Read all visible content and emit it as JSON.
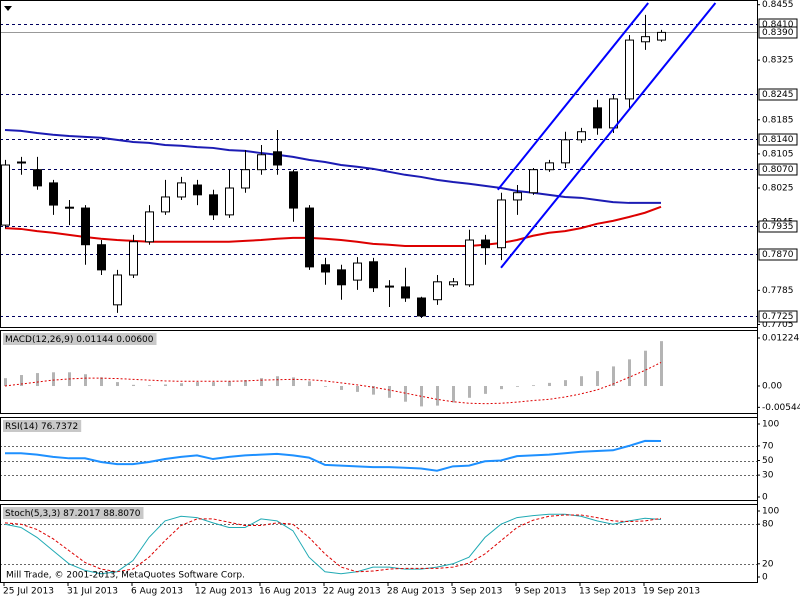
{
  "chart_data": [
    {
      "type": "candlestick",
      "categories": [
        "25 Jul 2013",
        null,
        null,
        null,
        "31 Jul 2013",
        null,
        null,
        null,
        "6 Aug 2013",
        null,
        null,
        null,
        "12 Aug 2013",
        null,
        null,
        null,
        "16 Aug 2013",
        null,
        null,
        null,
        "22 Aug 2013",
        null,
        null,
        null,
        "28 Aug 2013",
        null,
        null,
        null,
        "3 Sep 2013",
        null,
        null,
        null,
        "9 Sep 2013",
        null,
        null,
        null,
        "13 Sep 2013",
        null,
        null,
        null,
        "19 Sep 2013",
        null
      ],
      "open": [
        0.7938,
        0.8084,
        0.8068,
        0.8037,
        0.7978,
        0.7978,
        0.7892,
        0.7751,
        0.7821,
        0.7899,
        0.7969,
        0.8004,
        0.8032,
        0.8009,
        0.7962,
        0.8025,
        0.8068,
        0.811,
        0.8063,
        0.7978,
        0.7845,
        0.7833,
        0.7809,
        0.7852,
        0.7795,
        0.7793,
        0.7767,
        0.7763,
        0.7798,
        0.7798,
        0.7903,
        0.7885,
        0.7997,
        0.8014,
        0.8068,
        0.8084,
        0.8138,
        0.8213,
        0.8166,
        0.8234,
        0.8368,
        0.8372
      ],
      "high": [
        0.8091,
        0.8098,
        0.8098,
        0.8044,
        0.7997,
        0.7985,
        0.7903,
        0.7833,
        0.7915,
        0.7985,
        0.8044,
        0.8051,
        0.8044,
        0.8021,
        0.8068,
        0.8114,
        0.8126,
        0.8161,
        0.8068,
        0.7985,
        0.7861,
        0.7845,
        0.7863,
        0.7861,
        0.7809,
        0.7838,
        0.777,
        0.7821,
        0.7814,
        0.7927,
        0.7915,
        0.8014,
        0.8032,
        0.8072,
        0.8091,
        0.8157,
        0.8166,
        0.8232,
        0.8243,
        0.8384,
        0.8431,
        0.8396
      ],
      "low": [
        0.7931,
        0.8056,
        0.8021,
        0.7962,
        0.7938,
        0.7845,
        0.7821,
        0.7732,
        0.7814,
        0.7892,
        0.7962,
        0.7997,
        0.7985,
        0.795,
        0.7955,
        0.8014,
        0.8056,
        0.8056,
        0.7946,
        0.7833,
        0.7798,
        0.7763,
        0.7786,
        0.7781,
        0.7746,
        0.7758,
        0.772,
        0.7751,
        0.7793,
        0.7793,
        0.7845,
        0.7856,
        0.7962,
        0.8009,
        0.8063,
        0.8072,
        0.8131,
        0.815,
        0.8154,
        0.8208,
        0.8349,
        0.8368
      ],
      "close": [
        0.8079,
        0.8086,
        0.803,
        0.7985,
        0.798,
        0.7892,
        0.7833,
        0.7821,
        0.7899,
        0.7969,
        0.8004,
        0.8037,
        0.8009,
        0.7962,
        0.8025,
        0.8068,
        0.8103,
        0.8079,
        0.7978,
        0.784,
        0.7828,
        0.7798,
        0.7849,
        0.7791,
        0.7793,
        0.7767,
        0.7725,
        0.7805,
        0.7805,
        0.7903,
        0.7885,
        0.7997,
        0.8014,
        0.8068,
        0.8084,
        0.8138,
        0.8157,
        0.8166,
        0.8234,
        0.8372,
        0.838,
        0.839
      ],
      "up_color": "#ffffff",
      "down_color": "#000000",
      "lines": [
        {
          "color": "#1c1cb4",
          "values": [
            0.8161,
            0.8159,
            0.8154,
            0.815,
            0.8147,
            0.8145,
            0.8143,
            0.8138,
            0.8133,
            0.8131,
            0.8126,
            0.8124,
            0.8121,
            0.8119,
            0.8114,
            0.8112,
            0.8107,
            0.8103,
            0.8098,
            0.8091,
            0.8086,
            0.8079,
            0.8075,
            0.807,
            0.8063,
            0.8056,
            0.8051,
            0.8044,
            0.8039,
            0.8035,
            0.803,
            0.8025,
            0.8018,
            0.8014,
            0.8009,
            0.8004,
            0.8002,
            0.7997,
            0.7992,
            0.799,
            0.799,
            0.799
          ]
        },
        {
          "color": "#dd0000",
          "values": [
            0.7931,
            0.7929,
            0.7924,
            0.792,
            0.7915,
            0.791,
            0.7906,
            0.7903,
            0.7901,
            0.7899,
            0.7899,
            0.7899,
            0.7899,
            0.7899,
            0.7899,
            0.7901,
            0.7903,
            0.7906,
            0.7908,
            0.7908,
            0.7906,
            0.7903,
            0.7899,
            0.7894,
            0.7892,
            0.7889,
            0.7889,
            0.7889,
            0.7889,
            0.7889,
            0.7892,
            0.7896,
            0.7903,
            0.7913,
            0.792,
            0.7924,
            0.7931,
            0.7941,
            0.7948,
            0.7957,
            0.7967,
            0.7981
          ]
        }
      ],
      "trendlines": [
        {
          "color": "#0000ff",
          "x": [
            30.8,
            40.2
          ],
          "y": [
            0.8021,
            0.8459
          ]
        },
        {
          "color": "#0000ff",
          "x": [
            31,
            44.4
          ],
          "y": [
            0.7838,
            0.8459
          ]
        }
      ],
      "ylim": [
        0.7699,
        0.8466
      ],
      "yticks": [
        0.8455,
        0.8325,
        0.8185,
        0.8105,
        0.8025,
        0.7945,
        0.7785,
        0.7705
      ],
      "levels": [
        {
          "value": 0.841,
          "label": "0.8410"
        },
        {
          "value": 0.8245,
          "label": "0.8245"
        },
        {
          "value": 0.814,
          "label": "0.8140"
        },
        {
          "value": 0.807,
          "label": "0.8070"
        },
        {
          "value": 0.7935,
          "label": "0.7935"
        },
        {
          "value": 0.787,
          "label": "0.7870"
        },
        {
          "value": 0.7725,
          "label": "0.7725"
        }
      ],
      "current_price": {
        "value": 0.839,
        "label": "0.8390"
      }
    },
    {
      "type": "macd",
      "title": "MACD(12,26,9) 0.01144 0.00600",
      "values": [
        0.002,
        0.0028,
        0.0033,
        0.0035,
        0.0035,
        0.003,
        0.0022,
        0.001,
        0.0003,
        0.0002,
        0.0004,
        0.0007,
        0.001,
        0.001,
        0.0012,
        0.0015,
        0.002,
        0.0025,
        0.0022,
        0.0012,
        -0.0002,
        -0.001,
        -0.0015,
        -0.0022,
        -0.003,
        -0.004,
        -0.0052,
        -0.005,
        -0.0042,
        -0.003,
        -0.002,
        -0.0008,
        -0.0002,
        0.0002,
        0.0008,
        0.0015,
        0.0025,
        0.0038,
        0.005,
        0.0068,
        0.009,
        0.01144
      ],
      "color": "#b4b4b4",
      "signal": {
        "color": "#dd0000",
        "values": [
          0,
          0.0005,
          0.001,
          0.0015,
          0.0018,
          0.002,
          0.002,
          0.0019,
          0.0017,
          0.0015,
          0.0013,
          0.0012,
          0.0012,
          0.0012,
          0.0012,
          0.0013,
          0.0015,
          0.0016,
          0.0017,
          0.0016,
          0.0013,
          0.0008,
          0.0003,
          -0.0003,
          -0.001,
          -0.0018,
          -0.0026,
          -0.0034,
          -0.004,
          -0.0044,
          -0.0045,
          -0.0044,
          -0.0041,
          -0.0037,
          -0.0034,
          -0.0028,
          -0.002,
          -0.001,
          0.0005,
          0.0022,
          0.004,
          0.006
        ]
      },
      "ylim": [
        -0.00688,
        0.01428
      ],
      "yticks": [
        0.01224,
        {
          "value": 0,
          "label": "0.00"
        },
        -0.00544
      ]
    },
    {
      "type": "line",
      "title": "RSI(14) 76.7372",
      "series": [
        {
          "color": "#1e90ff",
          "values": [
            60,
            60,
            58,
            55,
            53,
            53,
            48,
            45,
            45,
            48,
            52,
            55,
            57,
            52,
            55,
            57,
            58,
            59,
            57,
            54,
            44,
            43,
            42,
            41,
            41,
            40,
            39,
            36,
            42,
            43,
            49,
            50,
            56,
            57,
            58,
            60,
            62,
            63,
            64,
            70,
            76.8,
            76.7372
          ]
        }
      ],
      "ylim": [
        0,
        100
      ],
      "yticks": [
        100,
        70,
        50,
        30,
        0
      ],
      "levels": [
        70,
        50,
        30
      ]
    },
    {
      "type": "line",
      "title": "Stoch(5,3,3) 87.2017 88.8070",
      "series": [
        {
          "color": "#20aab4",
          "values": [
            80,
            75,
            60,
            40,
            20,
            10,
            5,
            8,
            25,
            60,
            85,
            92,
            90,
            82,
            75,
            75,
            88,
            85,
            70,
            30,
            8,
            5,
            8,
            15,
            15,
            12,
            12,
            15,
            20,
            30,
            60,
            80,
            90,
            93,
            95,
            95,
            92,
            85,
            80,
            85,
            89,
            87.2017
          ]
        },
        {
          "color": "#dd0000",
          "dashed": true,
          "values": [
            82,
            80,
            72,
            58,
            40,
            22,
            12,
            8,
            12,
            30,
            55,
            78,
            88,
            88,
            83,
            78,
            78,
            82,
            80,
            60,
            35,
            15,
            8,
            9,
            12,
            13,
            13,
            13,
            15,
            21,
            35,
            55,
            75,
            86,
            92,
            94,
            94,
            90,
            85,
            84,
            85,
            88.807
          ]
        }
      ],
      "ylim": [
        0,
        100
      ],
      "yticks": [
        100,
        80,
        20,
        0
      ],
      "levels": [
        80,
        20
      ],
      "footer": "Mill Trade, © 2001-2013, MetaQuotes Software Corp."
    }
  ]
}
